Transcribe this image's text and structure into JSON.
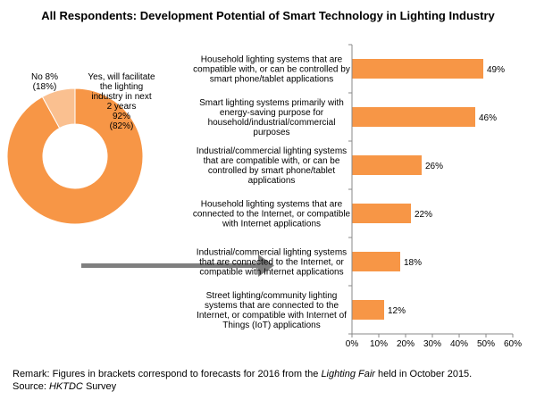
{
  "title": "All Respondents: Development Potential of Smart Technology in Lighting Industry",
  "remark": {
    "prefix": "Remark: Figures in brackets correspond to forecasts for 2016 from the",
    "italic": "Lighting Fair",
    "suffix": "held in October 2015."
  },
  "source": {
    "prefix": "Source:",
    "italic": "HKTDC",
    "suffix": "Survey"
  },
  "colors": {
    "accent": "#F79646",
    "light": "#FAC090",
    "arrow": "#7F7F7F",
    "axis": "#888888"
  },
  "chart_data": [
    {
      "type": "pie",
      "variant": "donut",
      "slices": [
        {
          "name": "Yes, will facilitate the lighting industry in next 2 years",
          "value": 92,
          "forecast": 82,
          "label_lines": [
            "Yes, will facilitate",
            "the lighting",
            "industry in next",
            "2 years",
            "92%",
            "(82%)"
          ]
        },
        {
          "name": "No",
          "value": 8,
          "forecast": 18,
          "label_lines": [
            "No 8%",
            "(18%)"
          ]
        }
      ]
    },
    {
      "type": "bar",
      "orientation": "horizontal",
      "categories": [
        [
          "Household lighting systems that are",
          "compatible with, or can be controlled by",
          "smart phone/tablet applications"
        ],
        [
          "Smart lighting systems primarily with",
          "energy-saving purpose for",
          "household/industrial/commercial",
          "purposes"
        ],
        [
          "Industrial/commercial lighting systems",
          "that are compatible with, or can be",
          "controlled by smart phone/tablet",
          "applications"
        ],
        [
          "Household lighting systems that are",
          "connected to the Internet, or compatible",
          "with Internet applications"
        ],
        [
          "Industrial/commercial lighting systems",
          "that are connected to the Internet, or",
          "compatible with Internet applications"
        ],
        [
          "Street lighting/community lighting",
          "systems that are connected to the",
          "Internet, or compatible with Internet of",
          "Things (IoT) applications"
        ]
      ],
      "values": [
        49,
        46,
        26,
        22,
        18,
        12
      ],
      "value_labels": [
        "49%",
        "46%",
        "26%",
        "22%",
        "18%",
        "12%"
      ],
      "xlim": [
        0,
        60
      ],
      "xticks": [
        0,
        10,
        20,
        30,
        40,
        50,
        60
      ],
      "xtick_labels": [
        "0%",
        "10%",
        "20%",
        "30%",
        "40%",
        "50%",
        "60%"
      ]
    }
  ]
}
